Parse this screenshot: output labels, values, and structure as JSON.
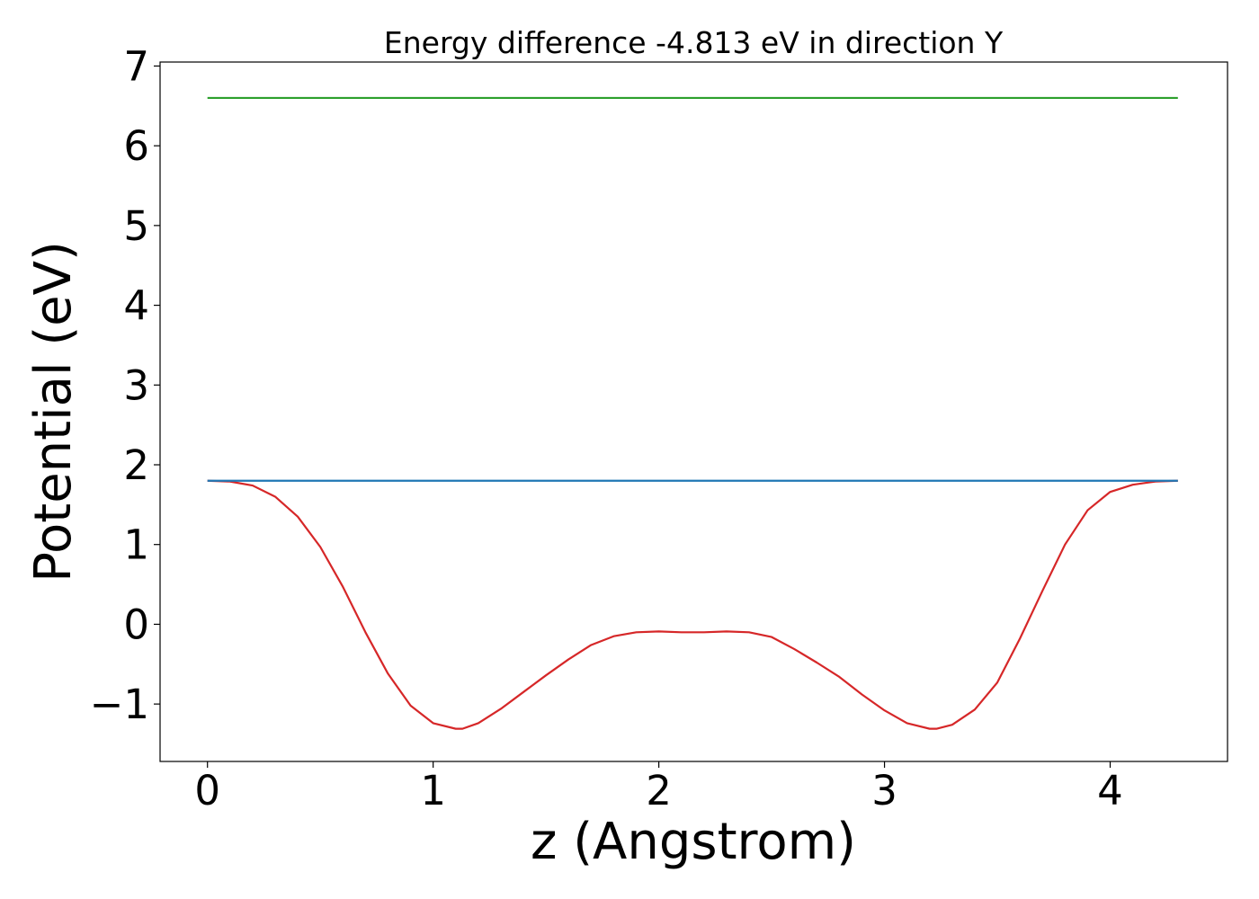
{
  "chart_data": {
    "type": "line",
    "title": "Energy difference -4.813 eV in direction Y",
    "xlabel": "z (Angstrom)",
    "ylabel": "Potential (eV)",
    "xlim": [
      -0.21,
      4.52
    ],
    "ylim": [
      -1.72,
      7.05
    ],
    "xticks": [
      0,
      1,
      2,
      3,
      4
    ],
    "xtick_labels": [
      "0",
      "1",
      "2",
      "3",
      "4"
    ],
    "yticks": [
      -1,
      0,
      1,
      2,
      3,
      4,
      5,
      6,
      7
    ],
    "ytick_labels": [
      "−1",
      "0",
      "1",
      "2",
      "3",
      "4",
      "5",
      "6",
      "7"
    ],
    "grid": false,
    "series": [
      {
        "color": "#d62728",
        "x": [
          0.0,
          0.1,
          0.2,
          0.3,
          0.4,
          0.5,
          0.6,
          0.7,
          0.8,
          0.9,
          1.0,
          1.1,
          1.13,
          1.2,
          1.3,
          1.4,
          1.5,
          1.6,
          1.7,
          1.8,
          1.9,
          2.0,
          2.1,
          2.2,
          2.3,
          2.4,
          2.5,
          2.6,
          2.7,
          2.8,
          2.9,
          3.0,
          3.1,
          3.2,
          3.23,
          3.3,
          3.4,
          3.5,
          3.6,
          3.7,
          3.8,
          3.9,
          4.0,
          4.1,
          4.2,
          4.3
        ],
        "values": [
          1.8,
          1.79,
          1.74,
          1.6,
          1.35,
          0.97,
          0.47,
          -0.1,
          -0.62,
          -1.02,
          -1.24,
          -1.31,
          -1.31,
          -1.24,
          -1.06,
          -0.85,
          -0.64,
          -0.44,
          -0.26,
          -0.15,
          -0.1,
          -0.09,
          -0.1,
          -0.1,
          -0.09,
          -0.1,
          -0.16,
          -0.31,
          -0.48,
          -0.66,
          -0.88,
          -1.08,
          -1.24,
          -1.31,
          -1.31,
          -1.26,
          -1.07,
          -0.73,
          -0.18,
          0.42,
          1.0,
          1.43,
          1.66,
          1.75,
          1.79,
          1.8
        ]
      },
      {
        "color": "#1f77b4",
        "x": [
          0.0,
          4.3
        ],
        "values": [
          1.8,
          1.8
        ]
      },
      {
        "color": "#2ca02c",
        "x": [
          0.0,
          4.3
        ],
        "values": [
          6.6,
          6.6
        ]
      }
    ]
  }
}
